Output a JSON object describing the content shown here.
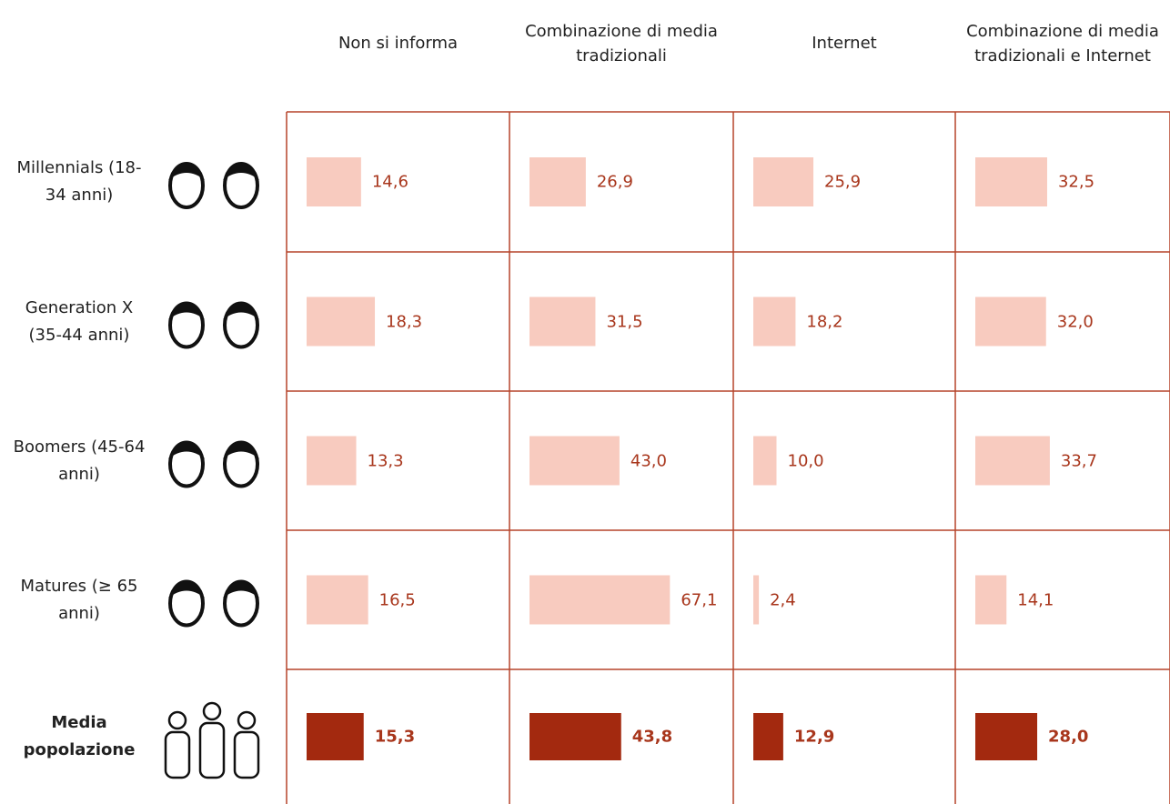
{
  "chart_data": {
    "type": "bar-grid",
    "categories": [
      "Millennials (18-34 anni)",
      "Generation X (35-44 anni)",
      "Boomers (45-64 anni)",
      "Matures (≥ 65 anni)",
      "Media popolazione"
    ],
    "highlight_category": 4,
    "highlight_color": "#a3290f",
    "series": [
      {
        "name": "Non si informa",
        "color": "#f8cbbf",
        "values": [
          14.6,
          18.3,
          13.3,
          16.5,
          15.3
        ],
        "value_labels": [
          "14,6",
          "18,3",
          "13,3",
          "16,5",
          "15,3"
        ]
      },
      {
        "name": "Combinazione di media tradizionali",
        "color": "#f8cbbf",
        "values": [
          26.9,
          31.5,
          43.0,
          67.1,
          43.8
        ],
        "value_labels": [
          "26,9",
          "31,5",
          "43,0",
          "67,1",
          "43,8"
        ]
      },
      {
        "name": "Internet",
        "color": "#f8cbbf",
        "values": [
          25.9,
          18.2,
          10.0,
          2.4,
          12.9
        ],
        "value_labels": [
          "25,9",
          "18,2",
          "10,0",
          "2,4",
          "12,9"
        ]
      },
      {
        "name": "Combinazione di media tradizionali e Internet",
        "color": "#f8cbbf",
        "values": [
          32.5,
          32.0,
          33.7,
          14.1,
          28.0
        ],
        "value_labels": [
          "32,5",
          "32,0",
          "33,7",
          "14,1",
          "28,0"
        ]
      }
    ]
  }
}
